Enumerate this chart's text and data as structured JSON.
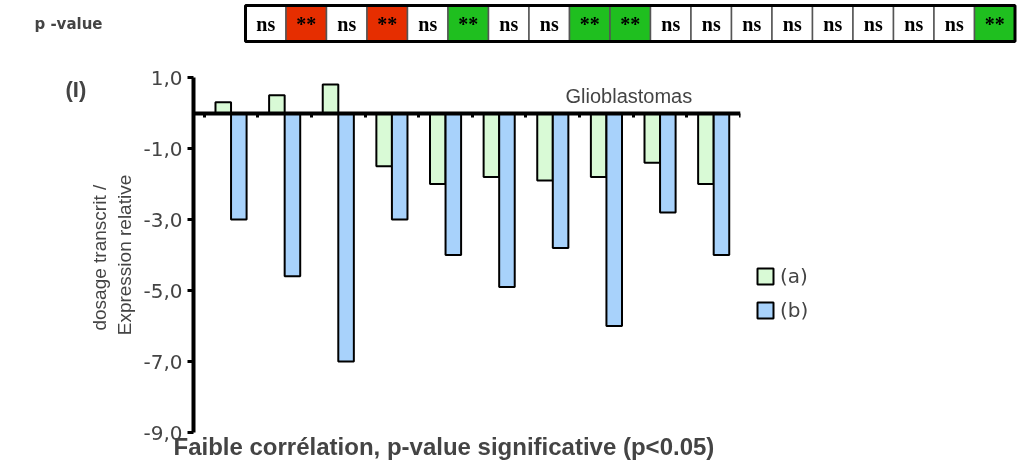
{
  "chart_data": [
    {
      "type": "other",
      "title": "p -value",
      "categories": [
        "ns",
        "**",
        "ns",
        "**",
        "ns",
        "**",
        "ns",
        "ns",
        "**",
        "**",
        "ns",
        "ns",
        "ns",
        "ns",
        "ns",
        "ns",
        "ns",
        "ns",
        "**"
      ],
      "colors": [
        "#ffffff",
        "#e62e00",
        "#ffffff",
        "#e62e00",
        "#ffffff",
        "#1fbf1f",
        "#ffffff",
        "#ffffff",
        "#1fbf1f",
        "#1fbf1f",
        "#ffffff",
        "#ffffff",
        "#ffffff",
        "#ffffff",
        "#ffffff",
        "#ffffff",
        "#ffffff",
        "#ffffff",
        "#1fbf1f"
      ]
    },
    {
      "type": "bar",
      "xlabel": "Faible corrélation, p-value significative (p<0.05)",
      "ylabel": "dosage  transcrit /\nExpression relative",
      "categories": [
        null,
        null,
        null,
        null,
        null,
        null,
        null,
        null,
        null,
        null
      ],
      "series": [
        {
          "name": "(a)",
          "color": "#d9fad6",
          "values": [
            0.3,
            0.5,
            0.8,
            -1.5,
            -2.0,
            -1.8,
            -1.9,
            -1.8,
            -1.4,
            -2.0
          ]
        },
        {
          "name": "(b)",
          "color": "#a8d2fb",
          "values": [
            -3.0,
            -4.6,
            -7.0,
            -3.0,
            -4.0,
            -4.9,
            -3.8,
            -6.0,
            -2.8,
            -4.0
          ]
        }
      ],
      "ylim": [
        -9.0,
        1.0
      ],
      "yticks": [
        {
          "value": 1,
          "label": "1,0"
        },
        {
          "value": -1,
          "label": "-1,0"
        },
        {
          "value": -3,
          "label": "-3,0"
        },
        {
          "value": -5,
          "label": "-5,0"
        },
        {
          "value": -7,
          "label": "-7,0"
        },
        {
          "value": -9,
          "label": "-9,0"
        }
      ],
      "annotations": [
        "(I)",
        "Glioblastomas"
      ],
      "legend": "right",
      "grid": false,
      "tick_labels": "y"
    }
  ]
}
